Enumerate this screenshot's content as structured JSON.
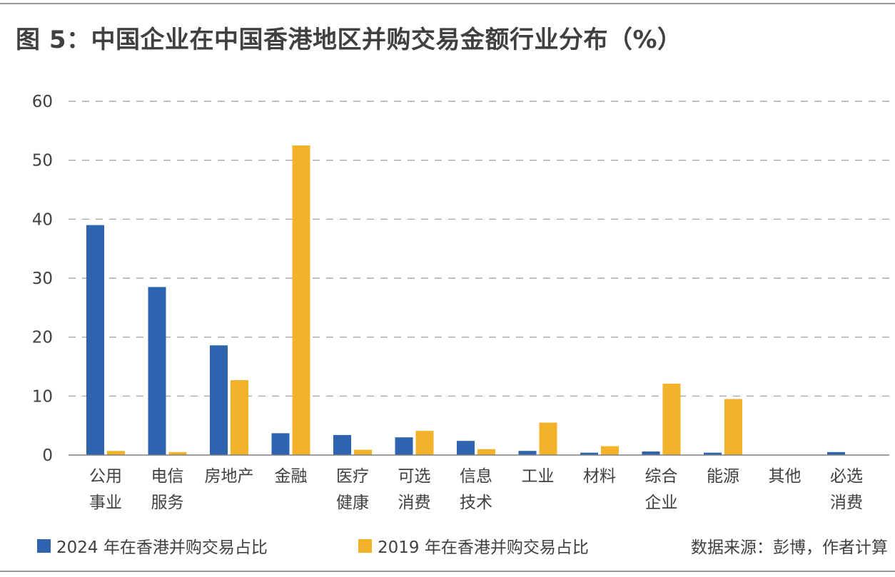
{
  "title": "图 5：中国企业在中国香港地区并购交易金额行业分布（%）",
  "source": "数据来源：彭博，作者计算",
  "colors": {
    "series_2024": "#2e63b0",
    "series_2019": "#f2b22a",
    "grid": "#9a9a9a",
    "axis": "#7f7f7f"
  },
  "chart_data": {
    "type": "bar",
    "title": "图 5：中国企业在中国香港地区并购交易金额行业分布（%）",
    "xlabel": "",
    "ylabel": "",
    "ylim": [
      0,
      60
    ],
    "yticks": [
      0,
      10,
      20,
      30,
      40,
      50,
      60
    ],
    "grid": true,
    "legend": "bottom-left",
    "categories": [
      [
        "公用",
        "事业"
      ],
      [
        "电信",
        "服务"
      ],
      [
        "房地产"
      ],
      [
        "金融"
      ],
      [
        "医疗",
        "健康"
      ],
      [
        "可选",
        "消费"
      ],
      [
        "信息",
        "技术"
      ],
      [
        "工业"
      ],
      [
        "材料"
      ],
      [
        "综合",
        "企业"
      ],
      [
        "能源"
      ],
      [
        "其他"
      ],
      [
        "必选",
        "消费"
      ]
    ],
    "series": [
      {
        "name": "2024 年在香港并购交易占比",
        "color": "#2e63b0",
        "values": [
          39.0,
          28.5,
          18.6,
          3.7,
          3.4,
          3.0,
          2.4,
          0.7,
          0.4,
          0.6,
          0.4,
          0.0,
          0.5
        ]
      },
      {
        "name": "2019 年在香港并购交易占比",
        "color": "#f2b22a",
        "values": [
          0.7,
          0.5,
          12.7,
          52.5,
          0.9,
          4.1,
          1.0,
          5.5,
          1.5,
          12.1,
          9.5,
          0.0,
          0.0
        ]
      }
    ]
  }
}
